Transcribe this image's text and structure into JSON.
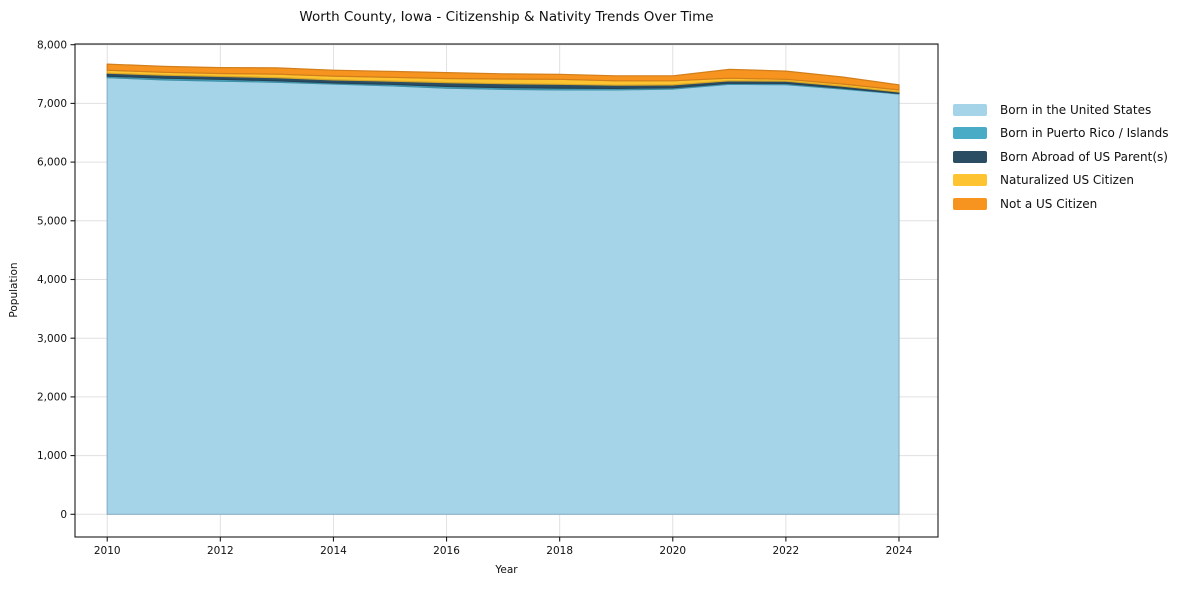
{
  "title": "Worth County, Iowa - Citizenship & Nativity Trends Over Time",
  "chart_data": {
    "type": "area",
    "stacked": true,
    "title": "Worth County, Iowa - Citizenship & Nativity Trends Over Time",
    "xlabel": "Year",
    "ylabel": "Population",
    "grid": true,
    "legend_position": "right-outside",
    "x": [
      2010,
      2011,
      2012,
      2013,
      2014,
      2015,
      2016,
      2017,
      2018,
      2019,
      2020,
      2021,
      2022,
      2023,
      2024
    ],
    "x_ticks": [
      2010,
      2012,
      2014,
      2016,
      2018,
      2020,
      2022,
      2024
    ],
    "x_tick_labels": [
      "2010",
      "2012",
      "2014",
      "2016",
      "2018",
      "2020",
      "2022",
      "2024"
    ],
    "y_ticks": [
      0,
      1000,
      2000,
      3000,
      4000,
      5000,
      6000,
      7000,
      8000
    ],
    "y_tick_labels": [
      "0",
      "1,000",
      "2,000",
      "3,000",
      "4,000",
      "5,000",
      "6,000",
      "7,000",
      "8,000"
    ],
    "ylim": [
      -387,
      8012
    ],
    "xlim": [
      2009.43,
      2024.69
    ],
    "series": [
      {
        "name": "Born in the United States",
        "color": "#a5d3e8",
        "values": [
          7440,
          7400,
          7380,
          7360,
          7330,
          7300,
          7260,
          7240,
          7230,
          7230,
          7245,
          7325,
          7320,
          7245,
          7160
        ]
      },
      {
        "name": "Born in Puerto Rico / Islands",
        "color": "#4aabc7",
        "values": [
          25,
          30,
          30,
          25,
          20,
          25,
          30,
          30,
          30,
          25,
          20,
          20,
          20,
          15,
          10
        ]
      },
      {
        "name": "Born Abroad of US Parent(s)",
        "color": "#2b4d63",
        "values": [
          50,
          50,
          50,
          55,
          50,
          55,
          65,
          65,
          65,
          55,
          50,
          40,
          40,
          35,
          25
        ]
      },
      {
        "name": "Naturalized US Citizen",
        "color": "#fdc330",
        "values": [
          50,
          50,
          50,
          60,
          65,
          65,
          70,
          80,
          85,
          75,
          70,
          45,
          30,
          35,
          35
        ]
      },
      {
        "name": "Not a US Citizen",
        "color": "#f7941f",
        "values": [
          105,
          100,
          100,
          105,
          100,
          100,
          100,
          90,
          85,
          85,
          85,
          150,
          140,
          120,
          85
        ]
      }
    ],
    "totals": [
      7670,
      7630,
      7610,
      7605,
      7565,
      7545,
      7525,
      7505,
      7495,
      7470,
      7470,
      7580,
      7550,
      7450,
      7315
    ]
  },
  "colors": {
    "grid": "#e0e0e0",
    "spine": "#1a1a1a",
    "text": "#111111"
  }
}
